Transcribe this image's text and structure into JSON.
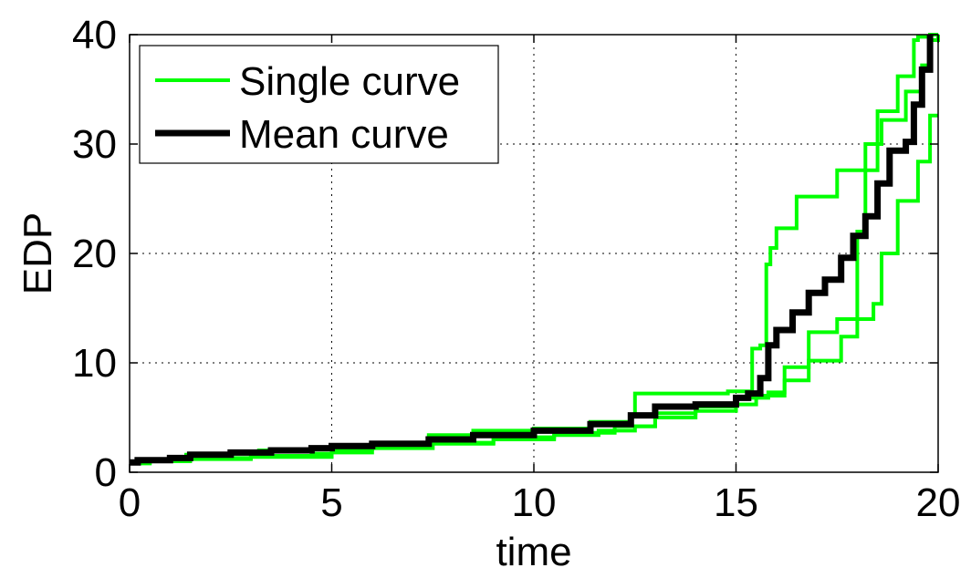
{
  "chart_data": {
    "type": "line",
    "title": "",
    "xlabel": "time",
    "ylabel": "EDP",
    "xlim": [
      0,
      20
    ],
    "ylim": [
      0,
      40
    ],
    "xticks": [
      "0",
      "5",
      "10",
      "15",
      "20"
    ],
    "yticks": [
      "0",
      "10",
      "20",
      "30",
      "40"
    ],
    "grid": true,
    "legend_position": "top-left",
    "colors": {
      "single": "#00ff00",
      "mean": "#000000"
    },
    "legend": [
      "Single curve",
      "Mean curve"
    ],
    "series": [
      {
        "name": "Single curve",
        "role": "single",
        "x": [
          0,
          0.2,
          1.0,
          1.4,
          2.5,
          3.2,
          4.0,
          5.0,
          6.0,
          7.4,
          8.5,
          10.0,
          11.4,
          12.4,
          12.5,
          14.8,
          15.4,
          15.6,
          15.75,
          15.85,
          16.0,
          16.5,
          17.5,
          18.0,
          18.5,
          19.0,
          19.4,
          19.5,
          19.8,
          20.0
        ],
        "y": [
          1.0,
          1.2,
          1.4,
          1.6,
          1.8,
          2.0,
          2.1,
          2.2,
          2.6,
          3.4,
          3.8,
          4.0,
          4.6,
          5.2,
          7.2,
          7.4,
          11.3,
          11.6,
          19.0,
          20.5,
          22.3,
          25.2,
          27.6,
          27.6,
          33.0,
          36.2,
          39.5,
          39.8,
          40.0,
          40.0
        ]
      },
      {
        "name": "Single curve",
        "role": "single",
        "x": [
          0,
          0.5,
          1.5,
          3.0,
          4.5,
          5.0,
          6.0,
          7.4,
          9.0,
          10.5,
          12.0,
          13.0,
          14.0,
          15.0,
          15.5,
          15.8,
          16.2,
          16.8,
          17.5,
          18.0,
          18.2,
          18.6,
          19.2,
          19.6,
          19.8,
          20.0
        ],
        "y": [
          0.9,
          1.1,
          1.3,
          1.5,
          1.7,
          2.1,
          2.4,
          2.7,
          3.2,
          3.6,
          4.2,
          5.4,
          6.0,
          6.8,
          7.0,
          7.3,
          9.6,
          12.8,
          14.0,
          22.0,
          30.0,
          32.2,
          34.8,
          37.2,
          39.5,
          40.0
        ]
      },
      {
        "name": "Single curve",
        "role": "single",
        "x": [
          0,
          0.5,
          1.5,
          3.0,
          5.0,
          6.0,
          7.5,
          9.0,
          10.5,
          11.6,
          12.5,
          13.0,
          14.0,
          15.0,
          15.5,
          15.8,
          16.2,
          16.8,
          17.6,
          18.0,
          18.4,
          18.6,
          19.0,
          19.5,
          19.8,
          20.0
        ],
        "y": [
          0.8,
          1.0,
          1.2,
          1.4,
          1.8,
          2.2,
          2.6,
          3.0,
          3.4,
          3.8,
          4.2,
          5.0,
          5.6,
          6.2,
          6.8,
          7.0,
          8.4,
          10.2,
          12.4,
          14.0,
          15.4,
          20.0,
          24.8,
          28.4,
          32.6,
          32.6
        ]
      },
      {
        "name": "Mean curve",
        "role": "mean",
        "x": [
          0,
          0.2,
          1.0,
          1.5,
          2.5,
          3.5,
          4.5,
          5.0,
          6.0,
          7.4,
          8.5,
          10.0,
          11.4,
          12.4,
          13.0,
          14.0,
          15.0,
          15.3,
          15.6,
          15.8,
          16.0,
          16.4,
          16.8,
          17.2,
          17.6,
          17.9,
          18.2,
          18.5,
          18.8,
          19.2,
          19.4,
          19.6,
          19.8
        ],
        "y": [
          0.9,
          1.1,
          1.3,
          1.6,
          1.8,
          2.0,
          2.2,
          2.4,
          2.6,
          3.0,
          3.4,
          3.8,
          4.4,
          5.2,
          6.0,
          6.2,
          6.8,
          7.2,
          8.6,
          11.6,
          13.0,
          14.6,
          16.4,
          17.6,
          19.6,
          21.6,
          23.4,
          26.4,
          29.4,
          30.2,
          33.6,
          36.8,
          40.0
        ]
      }
    ]
  }
}
